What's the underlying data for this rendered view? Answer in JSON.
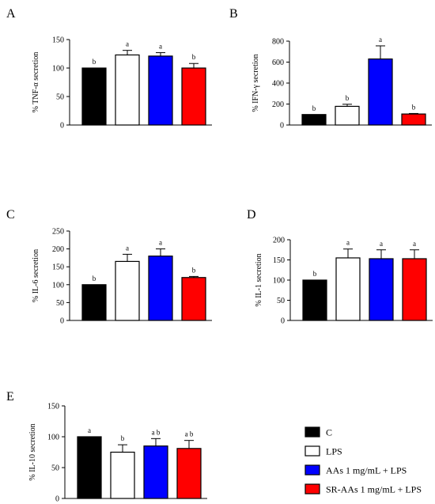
{
  "groups": [
    "C",
    "LPS",
    "AAs 1 mg/mL + LPS",
    "SR-AAs 1 mg/mL + LPS"
  ],
  "colors": {
    "C": "#000000",
    "LPS": "#ffffff",
    "AAs": "#0000ff",
    "SR-AAs": "#ff0000"
  },
  "chart_data": [
    {
      "panel": "A",
      "type": "bar",
      "ylabel": "% TNF-α secretion",
      "ylim": [
        0,
        150
      ],
      "ticks": [
        0,
        50,
        100,
        150
      ],
      "categories": [
        "C",
        "LPS",
        "AAs 1 mg/mL + LPS",
        "SR-AAs 1 mg/mL + LPS"
      ],
      "values": [
        100,
        123,
        121,
        100
      ],
      "errors": [
        0,
        8,
        6,
        8
      ],
      "letters": [
        "b",
        "a",
        "a",
        "b"
      ]
    },
    {
      "panel": "B",
      "type": "bar",
      "ylabel": "% IFN-γ secretion",
      "ylim": [
        0,
        800
      ],
      "ticks": [
        0,
        200,
        400,
        600,
        800
      ],
      "categories": [
        "C",
        "LPS",
        "AAs 1 mg/mL + LPS",
        "SR-AAs 1 mg/mL + LPS"
      ],
      "values": [
        100,
        178,
        630,
        105
      ],
      "errors": [
        0,
        20,
        125,
        5
      ],
      "letters": [
        "b",
        "b",
        "a",
        "b"
      ]
    },
    {
      "panel": "C",
      "type": "bar",
      "ylabel": "% IL-6 secretion",
      "ylim": [
        0,
        250
      ],
      "ticks": [
        0,
        50,
        100,
        150,
        200,
        250
      ],
      "categories": [
        "C",
        "LPS",
        "AAs 1 mg/mL + LPS",
        "SR-AAs 1 mg/mL + LPS"
      ],
      "values": [
        100,
        165,
        180,
        120
      ],
      "errors": [
        0,
        20,
        20,
        3
      ],
      "letters": [
        "b",
        "a",
        "a",
        "b"
      ]
    },
    {
      "panel": "D",
      "type": "bar",
      "ylabel": "% IL-1 secretion",
      "ylim": [
        0,
        200
      ],
      "ticks": [
        0,
        50,
        100,
        150,
        200
      ],
      "categories": [
        "C",
        "LPS",
        "AAs 1 mg/mL + LPS",
        "SR-AAs 1 mg/mL + LPS"
      ],
      "values": [
        100,
        155,
        153,
        153
      ],
      "errors": [
        0,
        22,
        22,
        22
      ],
      "letters": [
        "b",
        "a",
        "a",
        "a"
      ]
    },
    {
      "panel": "E",
      "type": "bar",
      "ylabel": "% IL-10 secretion",
      "ylim": [
        0,
        150
      ],
      "ticks": [
        0,
        50,
        100,
        150
      ],
      "categories": [
        "C",
        "LPS",
        "AAs 1 mg/mL + LPS",
        "SR-AAs 1 mg/mL + LPS"
      ],
      "values": [
        100,
        75,
        85,
        81
      ],
      "errors": [
        0,
        12,
        12,
        13
      ],
      "letters": [
        "a",
        "b",
        "a b",
        "a b"
      ]
    }
  ],
  "legend": [
    {
      "label": "C",
      "color": "#000000"
    },
    {
      "label": "LPS",
      "color": "#ffffff"
    },
    {
      "label": "AAs 1 mg/mL + LPS",
      "color": "#0000ff"
    },
    {
      "label": "SR-AAs 1 mg/mL + LPS",
      "color": "#ff0000"
    }
  ]
}
